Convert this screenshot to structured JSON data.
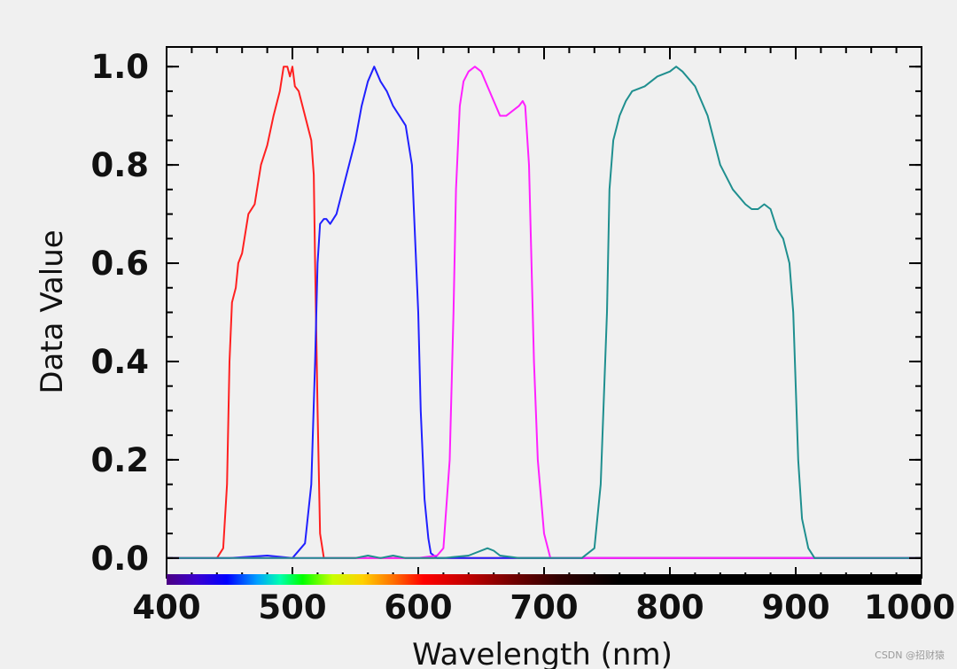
{
  "chart_data": {
    "type": "line",
    "title": "",
    "xlabel": "Wavelength (nm)",
    "ylabel": "Data Value",
    "xlim": [
      400,
      1000
    ],
    "ylim": [
      -0.04,
      1.04
    ],
    "x_ticks": [
      400,
      500,
      600,
      700,
      800,
      900,
      1000
    ],
    "x_tick_labels": [
      "400",
      "500",
      "600",
      "700",
      "800",
      "900",
      "1000"
    ],
    "y_ticks": [
      0.0,
      0.2,
      0.4,
      0.6,
      0.8,
      1.0
    ],
    "y_tick_labels": [
      "0.0",
      "0.2",
      "0.4",
      "0.6",
      "0.8",
      "1.0"
    ],
    "grid": false,
    "legend": "none",
    "wavelength_colorbar": true,
    "series": [
      {
        "color": "#ff2020",
        "x": [
          400,
          430,
          440,
          445,
          448,
          450,
          452,
          455,
          457,
          460,
          465,
          470,
          475,
          480,
          485,
          490,
          493,
          496,
          498,
          500,
          502,
          505,
          510,
          515,
          517,
          518,
          520,
          522,
          525,
          530,
          560,
          600,
          700,
          800,
          900,
          1000
        ],
        "y": [
          0.0,
          0.0,
          0.0,
          0.02,
          0.15,
          0.4,
          0.52,
          0.55,
          0.6,
          0.62,
          0.7,
          0.72,
          0.8,
          0.84,
          0.9,
          0.95,
          1.0,
          1.0,
          0.98,
          1.0,
          0.96,
          0.95,
          0.9,
          0.85,
          0.78,
          0.6,
          0.3,
          0.05,
          0.0,
          0.0,
          0.0,
          0.0,
          0.0,
          0.0,
          0.0,
          0.0
        ]
      },
      {
        "color": "#2020ff",
        "x": [
          400,
          450,
          480,
          500,
          510,
          515,
          518,
          520,
          522,
          525,
          527,
          530,
          535,
          540,
          545,
          550,
          555,
          560,
          565,
          570,
          575,
          580,
          585,
          590,
          595,
          600,
          602,
          605,
          608,
          610,
          615,
          630,
          700,
          800,
          900,
          1000
        ],
        "y": [
          0.0,
          0.0,
          0.005,
          0.0,
          0.03,
          0.15,
          0.4,
          0.6,
          0.68,
          0.69,
          0.69,
          0.68,
          0.7,
          0.75,
          0.8,
          0.85,
          0.92,
          0.97,
          1.0,
          0.97,
          0.95,
          0.92,
          0.9,
          0.88,
          0.8,
          0.5,
          0.3,
          0.12,
          0.04,
          0.01,
          0.0,
          0.0,
          0.0,
          0.0,
          0.0,
          0.0
        ]
      },
      {
        "color": "#ff20ff",
        "x": [
          400,
          500,
          600,
          615,
          620,
          625,
          628,
          630,
          633,
          636,
          640,
          645,
          650,
          655,
          660,
          665,
          670,
          675,
          680,
          683,
          685,
          688,
          690,
          692,
          695,
          700,
          705,
          710,
          800,
          900,
          1000
        ],
        "y": [
          0.0,
          0.0,
          0.0,
          0.005,
          0.02,
          0.2,
          0.5,
          0.75,
          0.92,
          0.97,
          0.99,
          1.0,
          0.99,
          0.96,
          0.93,
          0.9,
          0.9,
          0.91,
          0.92,
          0.93,
          0.92,
          0.8,
          0.6,
          0.4,
          0.2,
          0.05,
          0.0,
          0.0,
          0.0,
          0.0,
          0.0
        ]
      },
      {
        "color": "#1f8f8f",
        "x": [
          400,
          500,
          550,
          560,
          570,
          580,
          590,
          600,
          620,
          640,
          655,
          660,
          665,
          680,
          700,
          730,
          740,
          745,
          750,
          752,
          755,
          760,
          765,
          770,
          780,
          790,
          800,
          805,
          810,
          820,
          830,
          840,
          850,
          860,
          865,
          870,
          875,
          880,
          885,
          890,
          895,
          898,
          900,
          902,
          905,
          910,
          915,
          920,
          1000
        ],
        "y": [
          0.0,
          0.0,
          0.0,
          0.005,
          0.0,
          0.005,
          0.0,
          0.0,
          0.0,
          0.005,
          0.02,
          0.015,
          0.005,
          0.0,
          0.0,
          0.0,
          0.02,
          0.15,
          0.5,
          0.75,
          0.85,
          0.9,
          0.93,
          0.95,
          0.96,
          0.98,
          0.99,
          1.0,
          0.99,
          0.96,
          0.9,
          0.8,
          0.75,
          0.72,
          0.71,
          0.71,
          0.72,
          0.71,
          0.67,
          0.65,
          0.6,
          0.5,
          0.35,
          0.2,
          0.08,
          0.02,
          0.0,
          0.0,
          0.0
        ]
      }
    ]
  },
  "watermark": "CSDN @招财猿"
}
